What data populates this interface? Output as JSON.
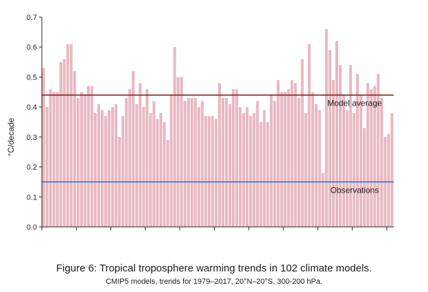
{
  "chart_data": {
    "type": "bar",
    "ylabel": "°C/decade",
    "ylim": [
      0,
      0.7
    ],
    "yticks": [
      "0.0",
      "0.1",
      "0.2",
      "0.3",
      "0.4",
      "0.5",
      "0.6",
      "0.7"
    ],
    "grid": false,
    "bar_color": "#e8b8c0",
    "values": [
      0.53,
      0.4,
      0.46,
      0.45,
      0.45,
      0.55,
      0.56,
      0.61,
      0.61,
      0.52,
      0.43,
      0.45,
      0.44,
      0.47,
      0.47,
      0.38,
      0.41,
      0.39,
      0.37,
      0.39,
      0.4,
      0.41,
      0.3,
      0.37,
      0.43,
      0.46,
      0.52,
      0.41,
      0.48,
      0.4,
      0.46,
      0.38,
      0.42,
      0.36,
      0.38,
      0.35,
      0.29,
      0.44,
      0.6,
      0.5,
      0.5,
      0.42,
      0.43,
      0.43,
      0.43,
      0.4,
      0.42,
      0.37,
      0.37,
      0.37,
      0.36,
      0.48,
      0.43,
      0.43,
      0.41,
      0.46,
      0.46,
      0.4,
      0.38,
      0.4,
      0.37,
      0.38,
      0.42,
      0.35,
      0.39,
      0.35,
      0.44,
      0.42,
      0.49,
      0.45,
      0.45,
      0.46,
      0.49,
      0.48,
      0.43,
      0.56,
      0.38,
      0.61,
      0.45,
      0.41,
      0.39,
      0.18,
      0.66,
      0.59,
      0.49,
      0.62,
      0.54,
      0.44,
      0.39,
      0.54,
      0.38,
      0.51,
      0.44,
      0.33,
      0.48,
      0.46,
      0.47,
      0.51,
      0.43,
      0.3,
      0.31,
      0.38
    ],
    "reference_lines": [
      {
        "label": "Model average",
        "value": 0.44,
        "color": "#8b1a1a"
      },
      {
        "label": "Observations",
        "value": 0.15,
        "color": "#3a6fc4"
      }
    ]
  },
  "caption": {
    "title": "Figure 6: Tropical troposphere warming trends in 102 climate models.",
    "subtitle": "CMIP5 models, trends for 1979–2017, 20°N–20°S, 300-200 hPa."
  }
}
